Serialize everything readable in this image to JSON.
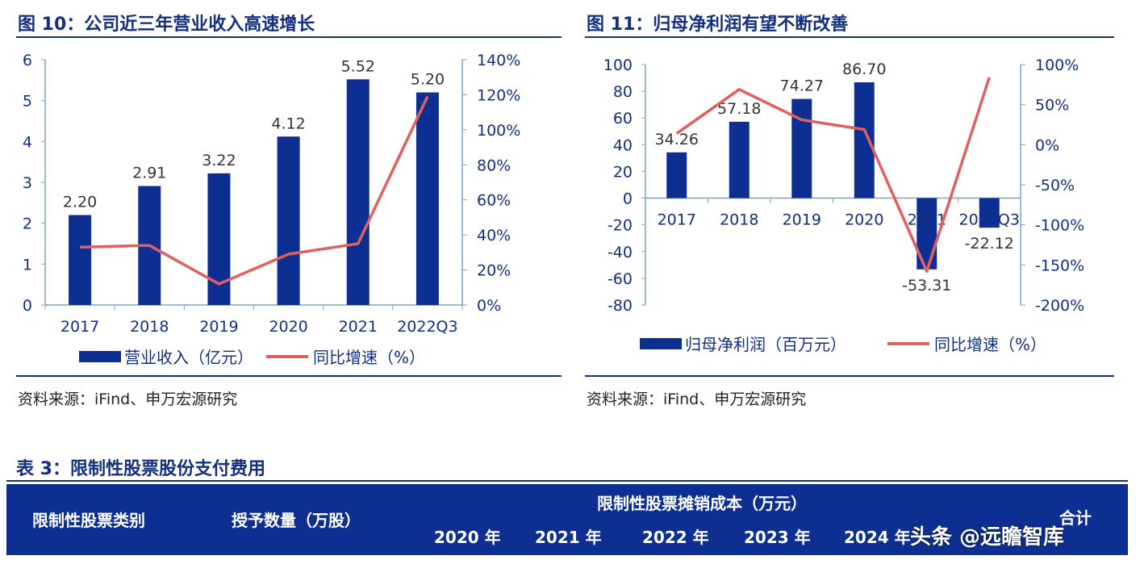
{
  "chart_data": [
    {
      "type": "bar+line",
      "title": "图 10：公司近三年营业收入高速增长",
      "categories": [
        "2017",
        "2018",
        "2019",
        "2020",
        "2021",
        "2022Q3"
      ],
      "series": [
        {
          "name": "营业收入（亿元）",
          "type": "bar",
          "axis": "left",
          "values": [
            2.2,
            2.91,
            3.22,
            4.12,
            5.52,
            5.2
          ],
          "labels": [
            "2.20",
            "2.91",
            "3.22",
            "4.12",
            "5.52",
            "5.20"
          ],
          "color": "#0d2f91"
        },
        {
          "name": "同比增速（%）",
          "type": "line",
          "axis": "right",
          "values": [
            33,
            34,
            12,
            29,
            35,
            119
          ],
          "color": "#e06060"
        }
      ],
      "ylim": [
        0,
        6
      ],
      "yticks": [
        "0",
        "1",
        "2",
        "3",
        "4",
        "5",
        "6"
      ],
      "y2lim": [
        0,
        140
      ],
      "y2ticks": [
        "0%",
        "20%",
        "40%",
        "60%",
        "80%",
        "100%",
        "120%",
        "140%"
      ],
      "legend": "bottom",
      "source": "资料来源：iFind、申万宏源研究"
    },
    {
      "type": "bar+line",
      "title": "图 11：归母净利润有望不断改善",
      "categories": [
        "2017",
        "2018",
        "2019",
        "2020",
        "2021",
        "2022Q3"
      ],
      "series": [
        {
          "name": "归母净利润（百万元）",
          "type": "bar",
          "axis": "left",
          "values": [
            34.26,
            57.18,
            74.27,
            86.7,
            -53.31,
            -22.12
          ],
          "labels": [
            "34.26",
            "57.18",
            "74.27",
            "86.70",
            "-53.31",
            "-22.12"
          ],
          "color": "#0d2f91"
        },
        {
          "name": "同比增速（%）",
          "type": "line",
          "axis": "right",
          "values": [
            14,
            69,
            31,
            19,
            -158,
            84
          ],
          "color": "#e06060"
        }
      ],
      "ylim": [
        -80,
        100
      ],
      "yticks": [
        "-80",
        "-60",
        "-40",
        "-20",
        "0",
        "20",
        "40",
        "60",
        "80",
        "100"
      ],
      "y2lim": [
        -200,
        100
      ],
      "y2ticks": [
        "-200%",
        "-150%",
        "-100%",
        "-50%",
        "0%",
        "50%",
        "100%"
      ],
      "legend": "bottom",
      "source": "资料来源：iFind、申万宏源研究"
    }
  ],
  "table": {
    "title": "表 3：限制性股票股份支付费用",
    "headers": {
      "category": "限制性股票类别",
      "quantity": "授予数量（万股）",
      "cost_group": "限制性股票摊销成本（万元）",
      "years": [
        "2020 年",
        "2021 年",
        "2022 年",
        "2023 年",
        "2024 年"
      ],
      "total": "合计"
    }
  },
  "watermark": "头条 @远瞻智库"
}
